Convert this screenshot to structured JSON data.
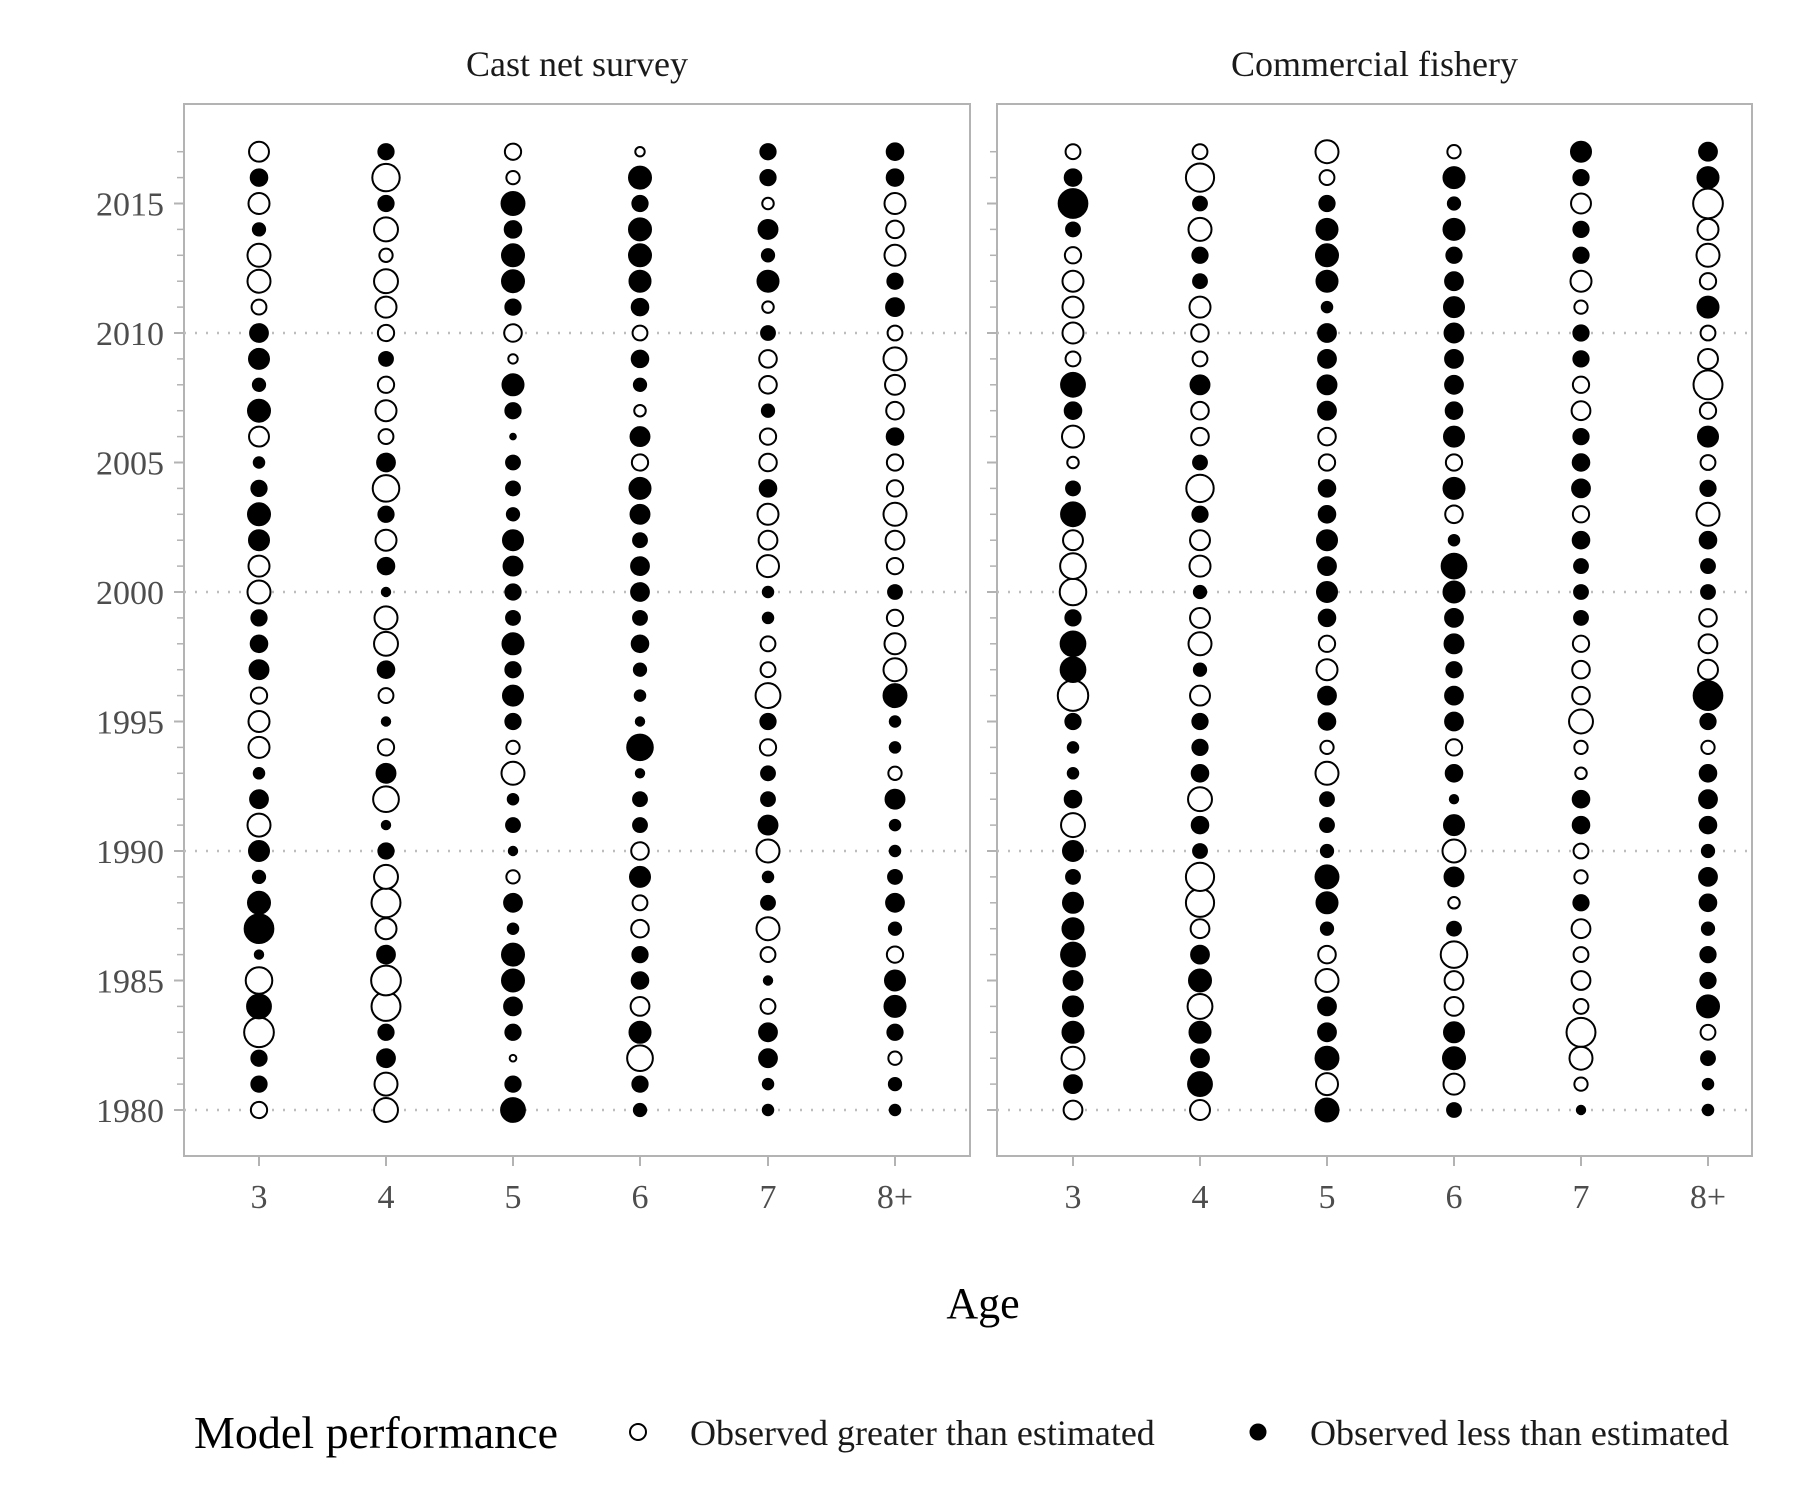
{
  "chart_data": {
    "type": "scatter",
    "xlabel": "Age",
    "ages": [
      "3",
      "4",
      "5",
      "6",
      "7",
      "8+"
    ],
    "y_ticks": [
      1980,
      1985,
      1990,
      1995,
      2000,
      2005,
      2010,
      2015
    ],
    "ylim": [
      1978.2,
      2018.8
    ],
    "years": [
      1980,
      1981,
      1982,
      1983,
      1984,
      1985,
      1986,
      1987,
      1988,
      1989,
      1990,
      1991,
      1992,
      1993,
      1994,
      1995,
      1996,
      1997,
      1998,
      1999,
      2000,
      2001,
      2002,
      2003,
      2004,
      2005,
      2006,
      2007,
      2008,
      2009,
      2010,
      2011,
      2012,
      2013,
      2014,
      2015,
      2016,
      2017
    ],
    "grid": "dotted horizontal at 1980, 1990, 2000, 2010",
    "legend": {
      "title": "Model performance",
      "position": "bottom",
      "open_label": "Observed greater than estimated",
      "filled_label": "Observed less than estimated"
    },
    "value_encoding": "residual per year (rows listed 1980 to 2017) for each age; positive = open circle (observed greater than estimated), negative = filled circle (observed less than estimated); circle area proportional to magnitude",
    "panels": [
      {
        "title": "Cast net survey",
        "residuals": {
          "3": [
            0.6,
            -0.6,
            -0.6,
            2.0,
            -1.4,
            1.6,
            -0.2,
            -2.0,
            -1.2,
            -0.4,
            -1.0,
            1.2,
            -0.8,
            -0.3,
            1.0,
            1.0,
            0.6,
            -0.9,
            -0.7,
            -0.6,
            1.2,
            1.0,
            -1.0,
            -1.2,
            -0.6,
            -0.3,
            0.9,
            -1.2,
            -0.4,
            -1.0,
            -0.8,
            0.5,
            1.2,
            1.2,
            -0.4,
            1.0,
            -0.7,
            0.9
          ],
          "4": [
            1.3,
            1.2,
            -0.8,
            -0.6,
            1.9,
            2.0,
            -0.8,
            1.0,
            1.9,
            1.3,
            -0.6,
            -0.2,
            1.5,
            -0.9,
            0.6,
            -0.2,
            0.5,
            -0.7,
            1.3,
            1.2,
            -0.2,
            -0.7,
            1.0,
            -0.6,
            1.6,
            -0.8,
            0.5,
            1.0,
            0.6,
            -0.5,
            0.6,
            1.0,
            1.3,
            0.4,
            1.3,
            -0.6,
            1.7,
            -0.6
          ],
          "5": [
            -1.4,
            -0.6,
            0.1,
            -0.6,
            -0.8,
            -1.2,
            -1.2,
            -0.3,
            -0.8,
            0.4,
            -0.2,
            -0.5,
            -0.3,
            1.2,
            0.4,
            -0.6,
            -1.0,
            -0.6,
            -1.1,
            -0.5,
            -0.6,
            -0.9,
            -1.0,
            -0.4,
            -0.5,
            -0.5,
            -0.1,
            -0.6,
            -1.1,
            0.2,
            0.7,
            -0.6,
            -1.2,
            -1.2,
            -0.7,
            -1.3,
            0.4,
            0.6
          ],
          "6": [
            -0.4,
            -0.6,
            1.5,
            -1.1,
            0.8,
            -0.7,
            -0.6,
            0.7,
            0.5,
            -1.0,
            0.7,
            -0.5,
            -0.5,
            -0.2,
            -1.6,
            -0.2,
            -0.3,
            -0.4,
            -0.7,
            -0.5,
            -0.8,
            -0.8,
            -0.5,
            -0.9,
            -1.1,
            0.6,
            -0.9,
            0.3,
            -0.4,
            -0.7,
            0.5,
            -0.7,
            -1.1,
            -1.2,
            -1.2,
            -0.6,
            -1.2,
            0.2
          ],
          "7": [
            -0.3,
            -0.3,
            -0.8,
            -0.8,
            0.5,
            -0.2,
            0.5,
            1.2,
            -0.5,
            -0.3,
            1.2,
            -0.9,
            -0.5,
            -0.5,
            0.6,
            -0.6,
            1.4,
            0.5,
            0.5,
            -0.3,
            -0.3,
            1.1,
            0.8,
            1.0,
            -0.7,
            0.7,
            0.6,
            -0.4,
            0.7,
            0.7,
            -0.5,
            0.3,
            -1.1,
            -0.4,
            -0.9,
            0.3,
            -0.6,
            -0.6
          ],
          "8+": [
            -0.3,
            -0.4,
            0.4,
            -0.6,
            -1.1,
            -1.0,
            0.6,
            -0.4,
            -0.8,
            -0.5,
            -0.3,
            -0.3,
            -0.9,
            0.4,
            -0.3,
            -0.3,
            -1.3,
            1.2,
            1.0,
            0.6,
            -0.5,
            0.6,
            0.8,
            1.2,
            0.6,
            0.6,
            -0.7,
            0.7,
            0.9,
            1.2,
            0.5,
            -0.8,
            -0.6,
            1.0,
            0.7,
            1.0,
            -0.7,
            -0.7
          ]
        }
      },
      {
        "title": "Commercial fishery",
        "residuals": {
          "3": [
            0.8,
            -0.8,
            1.2,
            -1.1,
            -1.0,
            -0.9,
            -1.4,
            -1.1,
            -1.0,
            -0.5,
            -1.0,
            1.3,
            -0.7,
            -0.3,
            -0.3,
            -0.6,
            2.1,
            -1.5,
            -1.5,
            -0.6,
            1.6,
            1.5,
            0.9,
            -1.4,
            -0.5,
            0.3,
            1.1,
            -0.7,
            -1.4,
            0.5,
            1.0,
            1.0,
            1.0,
            0.6,
            -0.5,
            -2.0,
            -0.7,
            0.5
          ],
          "4": [
            0.9,
            -1.4,
            -0.8,
            -1.1,
            1.4,
            -1.2,
            -0.8,
            0.8,
            1.8,
            1.8,
            -0.5,
            -0.7,
            1.3,
            -0.7,
            -0.6,
            -0.6,
            0.9,
            -0.4,
            1.2,
            0.9,
            -0.4,
            1.0,
            0.9,
            -0.6,
            1.7,
            -0.5,
            0.7,
            0.7,
            -0.9,
            0.5,
            0.7,
            1.0,
            -0.5,
            -0.6,
            1.2,
            -0.5,
            1.8,
            0.5
          ],
          "5": [
            -1.3,
            1.1,
            -1.3,
            -0.8,
            -0.8,
            1.2,
            0.7,
            -0.4,
            -1.1,
            -1.3,
            -0.4,
            -0.5,
            -0.5,
            1.2,
            0.4,
            -0.7,
            -0.8,
            1.0,
            0.6,
            -0.7,
            -1.0,
            -0.8,
            -1.0,
            -0.7,
            -0.7,
            0.6,
            0.7,
            -0.8,
            -0.9,
            -0.8,
            -0.8,
            -0.3,
            -1.1,
            -1.2,
            -1.1,
            -0.6,
            0.5,
            1.2
          ],
          "6": [
            -0.5,
            1.0,
            -1.2,
            -1.0,
            0.8,
            0.8,
            1.6,
            -0.5,
            0.3,
            -0.9,
            1.2,
            -1.0,
            -0.2,
            -0.7,
            0.6,
            -0.8,
            -0.8,
            -0.6,
            -0.9,
            -0.8,
            -1.1,
            -1.5,
            -0.3,
            0.7,
            -1.1,
            0.6,
            -1.0,
            -0.7,
            -0.8,
            -0.8,
            -0.9,
            -1.0,
            -0.8,
            -0.6,
            -1.1,
            -0.4,
            -1.1,
            0.4
          ],
          "7": [
            -0.2,
            0.4,
            1.2,
            1.9,
            0.5,
            0.8,
            0.5,
            0.8,
            -0.6,
            0.4,
            0.5,
            -0.7,
            -0.7,
            0.3,
            0.4,
            1.3,
            0.7,
            0.7,
            0.6,
            -0.5,
            -0.5,
            -0.5,
            -0.7,
            0.6,
            -0.8,
            -0.7,
            -0.6,
            0.8,
            0.6,
            -0.6,
            -0.6,
            0.4,
            1.0,
            -0.6,
            -0.6,
            0.9,
            -0.6,
            -1.0
          ],
          "8+": [
            -0.3,
            -0.3,
            -0.5,
            0.5,
            -1.2,
            -0.6,
            -0.6,
            -0.4,
            -0.7,
            -0.8,
            -0.4,
            -0.7,
            -0.8,
            -0.7,
            0.4,
            -0.6,
            -2.0,
            0.9,
            0.8,
            0.7,
            -0.5,
            -0.5,
            -0.7,
            1.2,
            -0.6,
            0.5,
            -1.0,
            0.6,
            1.9,
            0.9,
            0.5,
            -1.1,
            0.6,
            1.2,
            1.0,
            2.0,
            -1.1,
            -0.8
          ]
        }
      }
    ]
  }
}
